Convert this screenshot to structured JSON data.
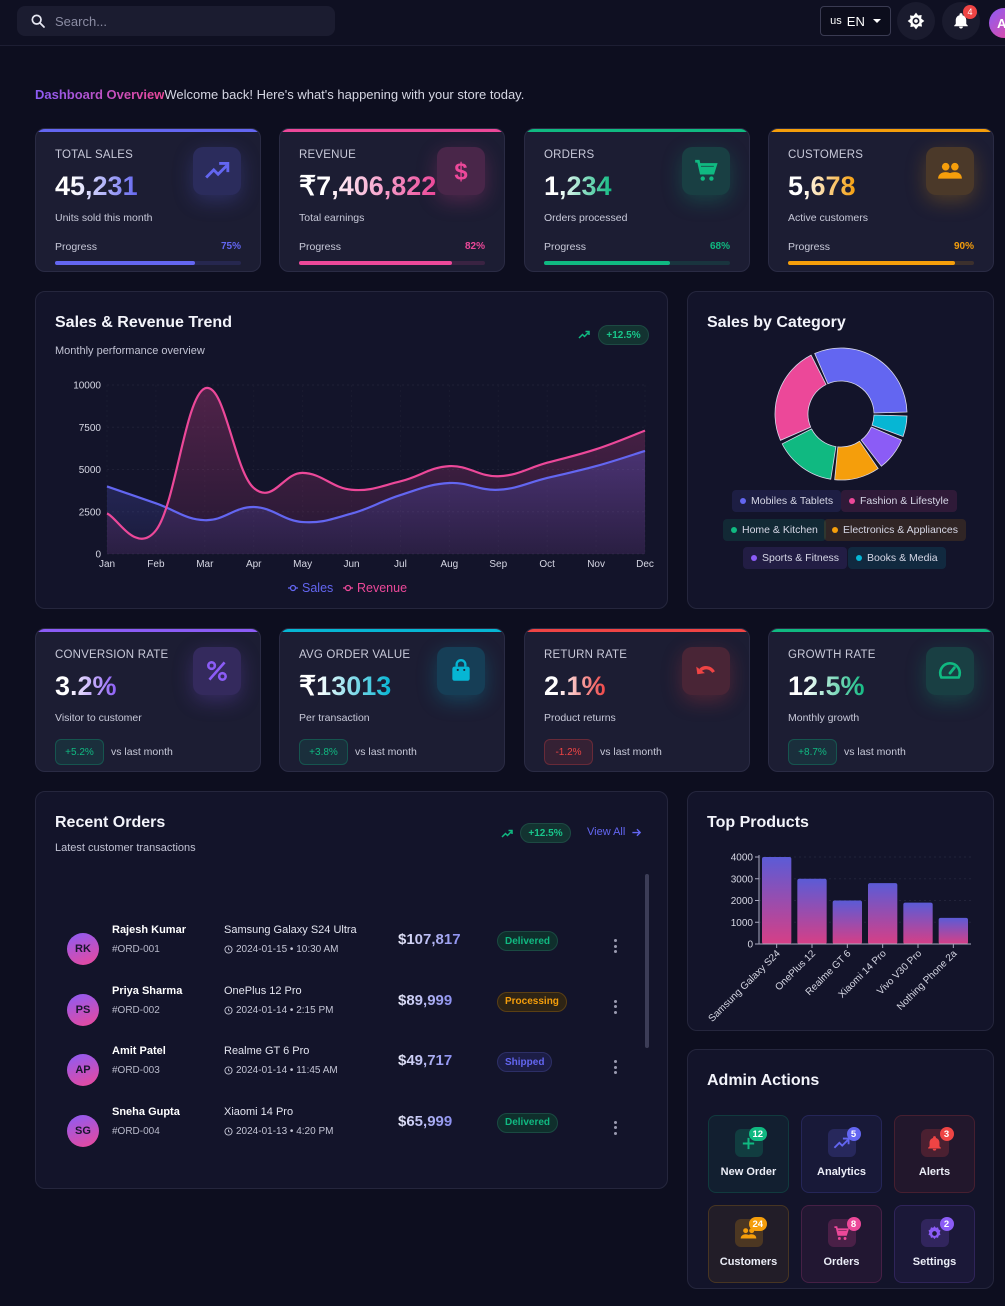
{
  "header": {
    "search_placeholder": "Search...",
    "language": {
      "flag": "us",
      "code": "EN"
    },
    "notifications_count": "4",
    "avatar_initial": "A"
  },
  "welcome": {
    "title": "Dashboard Overview",
    "message": "Welcome back! Here's what's happening with your store today."
  },
  "stats": [
    {
      "label": "TOTAL SALES",
      "value": "45,231",
      "sub": "Units sold this month",
      "progress_label": "Progress",
      "progress": 75,
      "progress_text": "75%",
      "color": "#6366f1",
      "icon": "trending-up-icon"
    },
    {
      "label": "REVENUE",
      "value": "₹7,406,822",
      "sub": "Total earnings",
      "progress_label": "Progress",
      "progress": 82,
      "progress_text": "82%",
      "color": "#ec4899",
      "icon": "dollar-icon"
    },
    {
      "label": "ORDERS",
      "value": "1,234",
      "sub": "Orders processed",
      "progress_label": "Progress",
      "progress": 68,
      "progress_text": "68%",
      "color": "#10b981",
      "icon": "cart-icon"
    },
    {
      "label": "CUSTOMERS",
      "value": "5,678",
      "sub": "Active customers",
      "progress_label": "Progress",
      "progress": 90,
      "progress_text": "90%",
      "color": "#f59e0b",
      "icon": "users-icon"
    }
  ],
  "metrics": [
    {
      "label": "CONVERSION RATE",
      "value": "3.2%",
      "sub": "Visitor to customer",
      "change": "+5.2%",
      "change_positive": true,
      "vs": "vs last month",
      "color": "#8b5cf6",
      "icon": "percent-icon"
    },
    {
      "label": "AVG ORDER VALUE",
      "value": "₹13013",
      "sub": "Per transaction",
      "change": "+3.8%",
      "change_positive": true,
      "vs": "vs last month",
      "color": "#06b6d4",
      "icon": "shopping-bag-icon"
    },
    {
      "label": "RETURN RATE",
      "value": "2.1%",
      "sub": "Product returns",
      "change": "-1.2%",
      "change_positive": false,
      "vs": "vs last month",
      "color": "#ef4444",
      "icon": "undo-icon"
    },
    {
      "label": "GROWTH RATE",
      "value": "12.5%",
      "sub": "Monthly growth",
      "change": "+8.7%",
      "change_positive": true,
      "vs": "vs last month",
      "color": "#10b981",
      "icon": "speedometer-icon"
    }
  ],
  "trend_panel": {
    "title": "Sales & Revenue Trend",
    "subtitle": "Monthly performance overview",
    "badge": "+12.5%"
  },
  "category_panel": {
    "title": "Sales by Category"
  },
  "orders_panel": {
    "title": "Recent Orders",
    "subtitle": "Latest customer transactions",
    "badge": "+12.5%",
    "view_all": "View All",
    "orders": [
      {
        "initials": "RK",
        "name": "Rajesh Kumar",
        "id": "#ORD-001",
        "product": "Samsung Galaxy S24 Ultra",
        "date": "2024-01-15 • 10:30 AM",
        "amount": "$107,817",
        "status": "Delivered"
      },
      {
        "initials": "PS",
        "name": "Priya Sharma",
        "id": "#ORD-002",
        "product": "OnePlus 12 Pro",
        "date": "2024-01-14 • 2:15 PM",
        "amount": "$89,999",
        "status": "Processing"
      },
      {
        "initials": "AP",
        "name": "Amit Patel",
        "id": "#ORD-003",
        "product": "Realme GT 6 Pro",
        "date": "2024-01-14 • 11:45 AM",
        "amount": "$49,717",
        "status": "Shipped"
      },
      {
        "initials": "SG",
        "name": "Sneha Gupta",
        "id": "#ORD-004",
        "product": "Xiaomi 14 Pro",
        "date": "2024-01-13 • 4:20 PM",
        "amount": "$65,999",
        "status": "Delivered"
      }
    ]
  },
  "products_panel": {
    "title": "Top Products"
  },
  "admin_panel": {
    "title": "Admin Actions",
    "actions": [
      {
        "label": "New Order",
        "badge": "12",
        "color": "#10b981",
        "icon": "plus-icon"
      },
      {
        "label": "Analytics",
        "badge": "5",
        "color": "#6366f1",
        "icon": "trending-up-icon"
      },
      {
        "label": "Alerts",
        "badge": "3",
        "color": "#ef4444",
        "icon": "bell-icon"
      },
      {
        "label": "Customers",
        "badge": "24",
        "color": "#f59e0b",
        "icon": "users-icon"
      },
      {
        "label": "Orders",
        "badge": "8",
        "color": "#ec4899",
        "icon": "cart-icon"
      },
      {
        "label": "Settings",
        "badge": "2",
        "color": "#8b5cf6",
        "icon": "gear-icon"
      }
    ]
  },
  "status_colors": {
    "Delivered": {
      "fg": "#10b981",
      "bg": "#0f2f2c",
      "border": "#1a4a42"
    },
    "Processing": {
      "fg": "#f59e0b",
      "bg": "#2e2415",
      "border": "#5a3f14"
    },
    "Shipped": {
      "fg": "#6366f1",
      "bg": "#1c1d45",
      "border": "#2d2f66"
    }
  },
  "chart_data": [
    {
      "type": "line",
      "title": "Sales & Revenue Trend",
      "categories": [
        "Jan",
        "Feb",
        "Mar",
        "Apr",
        "May",
        "Jun",
        "Jul",
        "Aug",
        "Sep",
        "Oct",
        "Nov",
        "Dec"
      ],
      "series": [
        {
          "name": "Sales",
          "color": "#6366f1",
          "values": [
            4000,
            3000,
            2000,
            2780,
            1890,
            2390,
            3490,
            4200,
            3800,
            4500,
            5200,
            6100
          ]
        },
        {
          "name": "Revenue",
          "color": "#ec4899",
          "values": [
            2400,
            1398,
            9800,
            3908,
            4800,
            3800,
            4300,
            5200,
            4600,
            5400,
            6200,
            7300
          ]
        }
      ],
      "yticks": [
        0,
        2500,
        5000,
        7500,
        10000
      ],
      "ylim": [
        0,
        10000
      ],
      "legend": "bottom",
      "grid": true,
      "area_fill": true
    },
    {
      "type": "pie",
      "subtype": "doughnut",
      "title": "Sales by Category",
      "categories": [
        "Mobiles & Tablets",
        "Fashion & Lifestyle",
        "Home & Kitchen",
        "Electronics & Appliances",
        "Sports & Fitness",
        "Books & Media"
      ],
      "values": [
        32,
        25,
        16,
        12,
        9,
        6
      ],
      "colors": [
        "#6366f1",
        "#ec4899",
        "#10b981",
        "#f59e0b",
        "#8b5cf6",
        "#06b6d4"
      ],
      "legend": "bottom"
    },
    {
      "type": "bar",
      "title": "Top Products",
      "categories": [
        "Samsung Galaxy S24",
        "OnePlus 12",
        "Realme GT 6",
        "Xiaomi 14 Pro",
        "Vivo V30 Pro",
        "Nothing Phone 2a"
      ],
      "values": [
        4000,
        3000,
        2000,
        2800,
        1900,
        1200
      ],
      "yticks": [
        0,
        1000,
        2000,
        3000,
        4000
      ],
      "ylim": [
        0,
        4000
      ],
      "grid": true
    }
  ]
}
